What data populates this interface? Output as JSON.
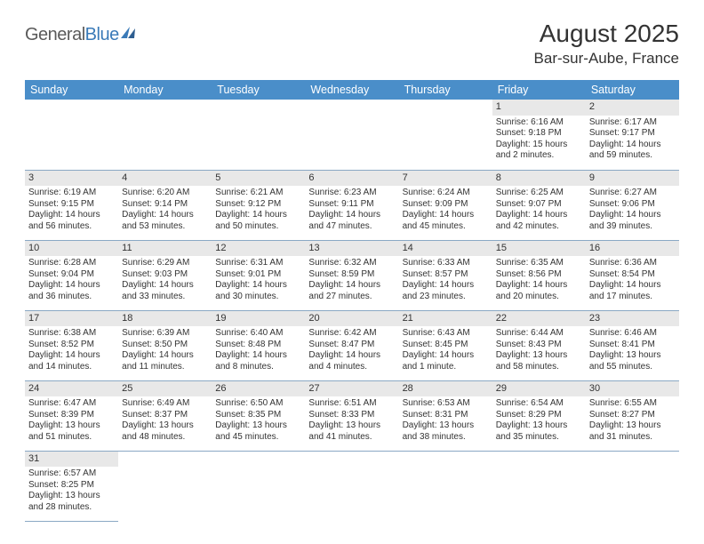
{
  "logo": {
    "general": "General",
    "blue": "Blue"
  },
  "header": {
    "title": "August 2025",
    "location": "Bar-sur-Aube, France"
  },
  "colors": {
    "header_bg": "#4a8ec9",
    "header_text": "#ffffff",
    "daynum_bg": "#e8e8e8",
    "border": "#8aa8c4",
    "logo_general": "#5a5a5a",
    "logo_blue": "#3a7ab8",
    "text": "#333333"
  },
  "dayNames": [
    "Sunday",
    "Monday",
    "Tuesday",
    "Wednesday",
    "Thursday",
    "Friday",
    "Saturday"
  ],
  "weeks": [
    [
      null,
      null,
      null,
      null,
      null,
      {
        "n": "1",
        "sr": "Sunrise: 6:16 AM",
        "ss": "Sunset: 9:18 PM",
        "dl1": "Daylight: 15 hours",
        "dl2": "and 2 minutes."
      },
      {
        "n": "2",
        "sr": "Sunrise: 6:17 AM",
        "ss": "Sunset: 9:17 PM",
        "dl1": "Daylight: 14 hours",
        "dl2": "and 59 minutes."
      }
    ],
    [
      {
        "n": "3",
        "sr": "Sunrise: 6:19 AM",
        "ss": "Sunset: 9:15 PM",
        "dl1": "Daylight: 14 hours",
        "dl2": "and 56 minutes."
      },
      {
        "n": "4",
        "sr": "Sunrise: 6:20 AM",
        "ss": "Sunset: 9:14 PM",
        "dl1": "Daylight: 14 hours",
        "dl2": "and 53 minutes."
      },
      {
        "n": "5",
        "sr": "Sunrise: 6:21 AM",
        "ss": "Sunset: 9:12 PM",
        "dl1": "Daylight: 14 hours",
        "dl2": "and 50 minutes."
      },
      {
        "n": "6",
        "sr": "Sunrise: 6:23 AM",
        "ss": "Sunset: 9:11 PM",
        "dl1": "Daylight: 14 hours",
        "dl2": "and 47 minutes."
      },
      {
        "n": "7",
        "sr": "Sunrise: 6:24 AM",
        "ss": "Sunset: 9:09 PM",
        "dl1": "Daylight: 14 hours",
        "dl2": "and 45 minutes."
      },
      {
        "n": "8",
        "sr": "Sunrise: 6:25 AM",
        "ss": "Sunset: 9:07 PM",
        "dl1": "Daylight: 14 hours",
        "dl2": "and 42 minutes."
      },
      {
        "n": "9",
        "sr": "Sunrise: 6:27 AM",
        "ss": "Sunset: 9:06 PM",
        "dl1": "Daylight: 14 hours",
        "dl2": "and 39 minutes."
      }
    ],
    [
      {
        "n": "10",
        "sr": "Sunrise: 6:28 AM",
        "ss": "Sunset: 9:04 PM",
        "dl1": "Daylight: 14 hours",
        "dl2": "and 36 minutes."
      },
      {
        "n": "11",
        "sr": "Sunrise: 6:29 AM",
        "ss": "Sunset: 9:03 PM",
        "dl1": "Daylight: 14 hours",
        "dl2": "and 33 minutes."
      },
      {
        "n": "12",
        "sr": "Sunrise: 6:31 AM",
        "ss": "Sunset: 9:01 PM",
        "dl1": "Daylight: 14 hours",
        "dl2": "and 30 minutes."
      },
      {
        "n": "13",
        "sr": "Sunrise: 6:32 AM",
        "ss": "Sunset: 8:59 PM",
        "dl1": "Daylight: 14 hours",
        "dl2": "and 27 minutes."
      },
      {
        "n": "14",
        "sr": "Sunrise: 6:33 AM",
        "ss": "Sunset: 8:57 PM",
        "dl1": "Daylight: 14 hours",
        "dl2": "and 23 minutes."
      },
      {
        "n": "15",
        "sr": "Sunrise: 6:35 AM",
        "ss": "Sunset: 8:56 PM",
        "dl1": "Daylight: 14 hours",
        "dl2": "and 20 minutes."
      },
      {
        "n": "16",
        "sr": "Sunrise: 6:36 AM",
        "ss": "Sunset: 8:54 PM",
        "dl1": "Daylight: 14 hours",
        "dl2": "and 17 minutes."
      }
    ],
    [
      {
        "n": "17",
        "sr": "Sunrise: 6:38 AM",
        "ss": "Sunset: 8:52 PM",
        "dl1": "Daylight: 14 hours",
        "dl2": "and 14 minutes."
      },
      {
        "n": "18",
        "sr": "Sunrise: 6:39 AM",
        "ss": "Sunset: 8:50 PM",
        "dl1": "Daylight: 14 hours",
        "dl2": "and 11 minutes."
      },
      {
        "n": "19",
        "sr": "Sunrise: 6:40 AM",
        "ss": "Sunset: 8:48 PM",
        "dl1": "Daylight: 14 hours",
        "dl2": "and 8 minutes."
      },
      {
        "n": "20",
        "sr": "Sunrise: 6:42 AM",
        "ss": "Sunset: 8:47 PM",
        "dl1": "Daylight: 14 hours",
        "dl2": "and 4 minutes."
      },
      {
        "n": "21",
        "sr": "Sunrise: 6:43 AM",
        "ss": "Sunset: 8:45 PM",
        "dl1": "Daylight: 14 hours",
        "dl2": "and 1 minute."
      },
      {
        "n": "22",
        "sr": "Sunrise: 6:44 AM",
        "ss": "Sunset: 8:43 PM",
        "dl1": "Daylight: 13 hours",
        "dl2": "and 58 minutes."
      },
      {
        "n": "23",
        "sr": "Sunrise: 6:46 AM",
        "ss": "Sunset: 8:41 PM",
        "dl1": "Daylight: 13 hours",
        "dl2": "and 55 minutes."
      }
    ],
    [
      {
        "n": "24",
        "sr": "Sunrise: 6:47 AM",
        "ss": "Sunset: 8:39 PM",
        "dl1": "Daylight: 13 hours",
        "dl2": "and 51 minutes."
      },
      {
        "n": "25",
        "sr": "Sunrise: 6:49 AM",
        "ss": "Sunset: 8:37 PM",
        "dl1": "Daylight: 13 hours",
        "dl2": "and 48 minutes."
      },
      {
        "n": "26",
        "sr": "Sunrise: 6:50 AM",
        "ss": "Sunset: 8:35 PM",
        "dl1": "Daylight: 13 hours",
        "dl2": "and 45 minutes."
      },
      {
        "n": "27",
        "sr": "Sunrise: 6:51 AM",
        "ss": "Sunset: 8:33 PM",
        "dl1": "Daylight: 13 hours",
        "dl2": "and 41 minutes."
      },
      {
        "n": "28",
        "sr": "Sunrise: 6:53 AM",
        "ss": "Sunset: 8:31 PM",
        "dl1": "Daylight: 13 hours",
        "dl2": "and 38 minutes."
      },
      {
        "n": "29",
        "sr": "Sunrise: 6:54 AM",
        "ss": "Sunset: 8:29 PM",
        "dl1": "Daylight: 13 hours",
        "dl2": "and 35 minutes."
      },
      {
        "n": "30",
        "sr": "Sunrise: 6:55 AM",
        "ss": "Sunset: 8:27 PM",
        "dl1": "Daylight: 13 hours",
        "dl2": "and 31 minutes."
      }
    ],
    [
      {
        "n": "31",
        "sr": "Sunrise: 6:57 AM",
        "ss": "Sunset: 8:25 PM",
        "dl1": "Daylight: 13 hours",
        "dl2": "and 28 minutes."
      },
      null,
      null,
      null,
      null,
      null,
      null
    ]
  ]
}
